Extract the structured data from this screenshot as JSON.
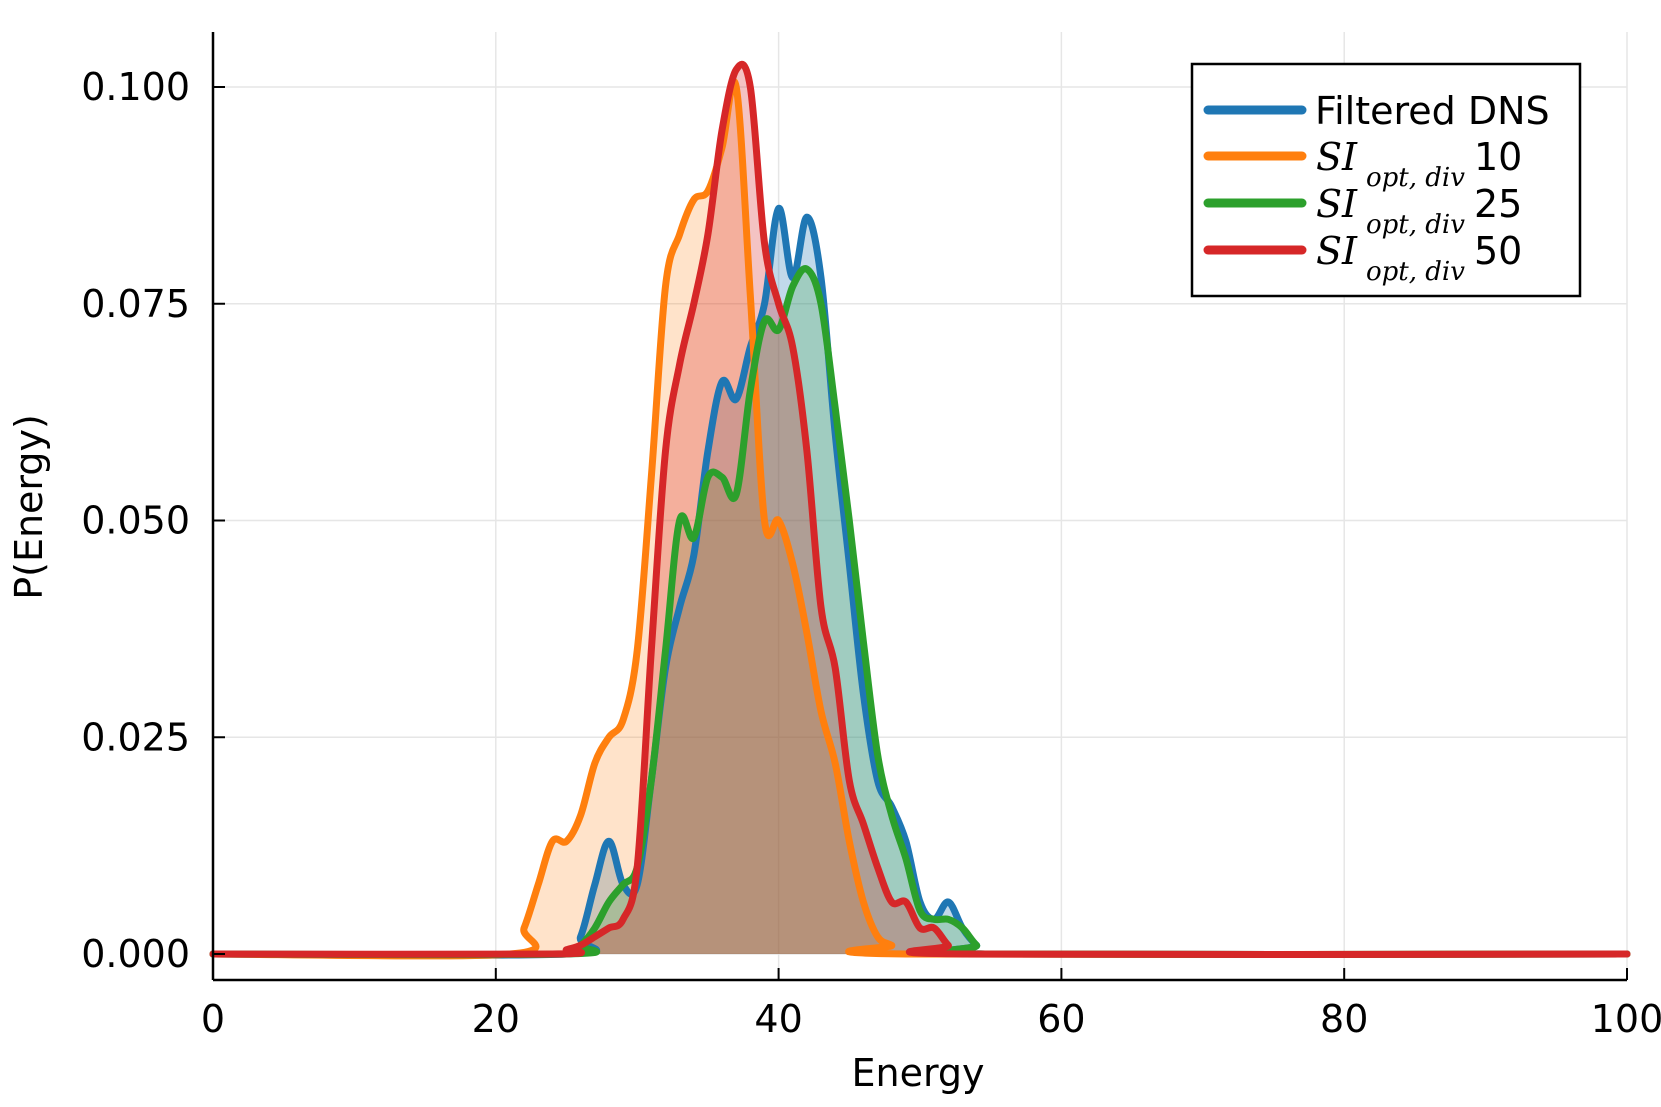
{
  "chart_data": {
    "type": "area",
    "title": "",
    "xlabel": "Energy",
    "ylabel": "P(Energy)",
    "xlim": [
      0,
      100
    ],
    "ylim": [
      -0.003,
      0.106
    ],
    "xticks": [
      0,
      20,
      40,
      60,
      80,
      100
    ],
    "xtick_labels": [
      "0",
      "20",
      "40",
      "60",
      "80",
      "100"
    ],
    "yticks": [
      0.0,
      0.025,
      0.05,
      0.075,
      0.1
    ],
    "ytick_labels": [
      "0.000",
      "0.025",
      "0.050",
      "0.075",
      "0.100"
    ],
    "grid": true,
    "legend_position": "top-right",
    "series": [
      {
        "name": "Filtered DNS",
        "legend_label": {
          "math_base": "",
          "math_sub": "",
          "suffix": "Filtered DNS"
        },
        "color": "#1f77b4",
        "fill_alpha": 0.28,
        "points": [
          [
            0,
            0
          ],
          [
            25,
            0
          ],
          [
            26,
            0.002
          ],
          [
            27,
            0.008
          ],
          [
            28,
            0.013
          ],
          [
            29,
            0.008
          ],
          [
            30,
            0.008
          ],
          [
            31,
            0.02
          ],
          [
            32,
            0.033
          ],
          [
            33,
            0.04
          ],
          [
            34,
            0.046
          ],
          [
            35,
            0.058
          ],
          [
            36,
            0.066
          ],
          [
            37,
            0.064
          ],
          [
            38,
            0.07
          ],
          [
            39,
            0.075
          ],
          [
            40,
            0.086
          ],
          [
            41,
            0.078
          ],
          [
            42,
            0.085
          ],
          [
            43,
            0.078
          ],
          [
            44,
            0.06
          ],
          [
            45,
            0.045
          ],
          [
            46,
            0.03
          ],
          [
            47,
            0.02
          ],
          [
            48,
            0.017
          ],
          [
            49,
            0.013
          ],
          [
            50,
            0.006
          ],
          [
            51,
            0.004
          ],
          [
            52,
            0.006
          ],
          [
            53,
            0.003
          ],
          [
            54,
            0.001
          ],
          [
            55,
            0
          ],
          [
            100,
            0
          ]
        ]
      },
      {
        "name": "SI opt,div 10",
        "legend_label": {
          "math_base": "SI",
          "math_sub": "opt, div",
          "suffix": "10"
        },
        "color": "#ff7f0e",
        "fill_alpha": 0.22,
        "points": [
          [
            0,
            0
          ],
          [
            21,
            0
          ],
          [
            22,
            0.003
          ],
          [
            23,
            0.008
          ],
          [
            24,
            0.013
          ],
          [
            25,
            0.013
          ],
          [
            26,
            0.016
          ],
          [
            27,
            0.022
          ],
          [
            28,
            0.025
          ],
          [
            29,
            0.027
          ],
          [
            30,
            0.035
          ],
          [
            31,
            0.055
          ],
          [
            32,
            0.077
          ],
          [
            33,
            0.083
          ],
          [
            34,
            0.087
          ],
          [
            35,
            0.088
          ],
          [
            36,
            0.093
          ],
          [
            37,
            0.1
          ],
          [
            38,
            0.076
          ],
          [
            39,
            0.05
          ],
          [
            40,
            0.05
          ],
          [
            41,
            0.045
          ],
          [
            42,
            0.037
          ],
          [
            43,
            0.028
          ],
          [
            44,
            0.022
          ],
          [
            45,
            0.013
          ],
          [
            46,
            0.006
          ],
          [
            47,
            0.002
          ],
          [
            48,
            0.001
          ],
          [
            49,
            0
          ],
          [
            100,
            0
          ]
        ]
      },
      {
        "name": "SI opt,div 25",
        "legend_label": {
          "math_base": "SI",
          "math_sub": "opt, div",
          "suffix": "25"
        },
        "color": "#2ca02c",
        "fill_alpha": 0.22,
        "points": [
          [
            0,
            0
          ],
          [
            25,
            0
          ],
          [
            26,
            0.001
          ],
          [
            27,
            0.003
          ],
          [
            28,
            0.006
          ],
          [
            29,
            0.008
          ],
          [
            30,
            0.01
          ],
          [
            31,
            0.02
          ],
          [
            32,
            0.035
          ],
          [
            33,
            0.05
          ],
          [
            34,
            0.048
          ],
          [
            35,
            0.055
          ],
          [
            36,
            0.055
          ],
          [
            37,
            0.053
          ],
          [
            38,
            0.065
          ],
          [
            39,
            0.073
          ],
          [
            40,
            0.072
          ],
          [
            41,
            0.077
          ],
          [
            42,
            0.079
          ],
          [
            43,
            0.075
          ],
          [
            44,
            0.063
          ],
          [
            45,
            0.05
          ],
          [
            46,
            0.036
          ],
          [
            47,
            0.023
          ],
          [
            48,
            0.016
          ],
          [
            49,
            0.011
          ],
          [
            50,
            0.005
          ],
          [
            51,
            0.004
          ],
          [
            52,
            0.004
          ],
          [
            53,
            0.003
          ],
          [
            54,
            0.001
          ],
          [
            55,
            0
          ],
          [
            100,
            0
          ]
        ]
      },
      {
        "name": "SI opt,div 50",
        "legend_label": {
          "math_base": "SI",
          "math_sub": "opt, div",
          "suffix": "50"
        },
        "color": "#d62728",
        "fill_alpha": 0.28,
        "points": [
          [
            0,
            0
          ],
          [
            24,
            0
          ],
          [
            25,
            0.0005
          ],
          [
            26,
            0.001
          ],
          [
            27,
            0.002
          ],
          [
            28,
            0.003
          ],
          [
            29,
            0.004
          ],
          [
            30,
            0.01
          ],
          [
            31,
            0.035
          ],
          [
            32,
            0.058
          ],
          [
            33,
            0.068
          ],
          [
            34,
            0.075
          ],
          [
            35,
            0.083
          ],
          [
            36,
            0.095
          ],
          [
            37,
            0.102
          ],
          [
            38,
            0.1
          ],
          [
            39,
            0.082
          ],
          [
            40,
            0.075
          ],
          [
            41,
            0.07
          ],
          [
            42,
            0.058
          ],
          [
            43,
            0.04
          ],
          [
            44,
            0.033
          ],
          [
            45,
            0.02
          ],
          [
            46,
            0.015
          ],
          [
            47,
            0.01
          ],
          [
            48,
            0.006
          ],
          [
            49,
            0.006
          ],
          [
            50,
            0.003
          ],
          [
            51,
            0.003
          ],
          [
            52,
            0.001
          ],
          [
            53,
            0
          ],
          [
            100,
            0
          ]
        ]
      }
    ]
  }
}
